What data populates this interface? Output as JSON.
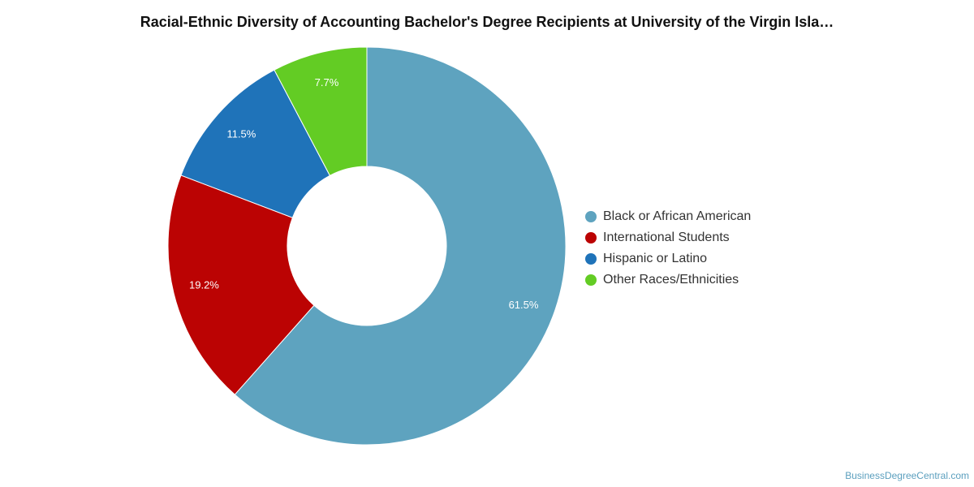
{
  "chart_data": {
    "type": "pie",
    "title": "Racial-Ethnic Diversity of Accounting Bachelor's Degree Recipients at University of the Virgin Isla…",
    "categories": [
      "Black or African American",
      "International Students",
      "Hispanic or Latino",
      "Other Races/Ethnicities"
    ],
    "values": [
      61.5,
      19.2,
      11.5,
      7.7
    ],
    "data_labels": [
      "61.5%",
      "19.2%",
      "11.5%",
      "7.7%"
    ],
    "colors": [
      "#5ea3bf",
      "#bb0303",
      "#1f73b9",
      "#63cc24"
    ],
    "donut": true,
    "legend_position": "right"
  },
  "credit": "BusinessDegreeCentral.com"
}
